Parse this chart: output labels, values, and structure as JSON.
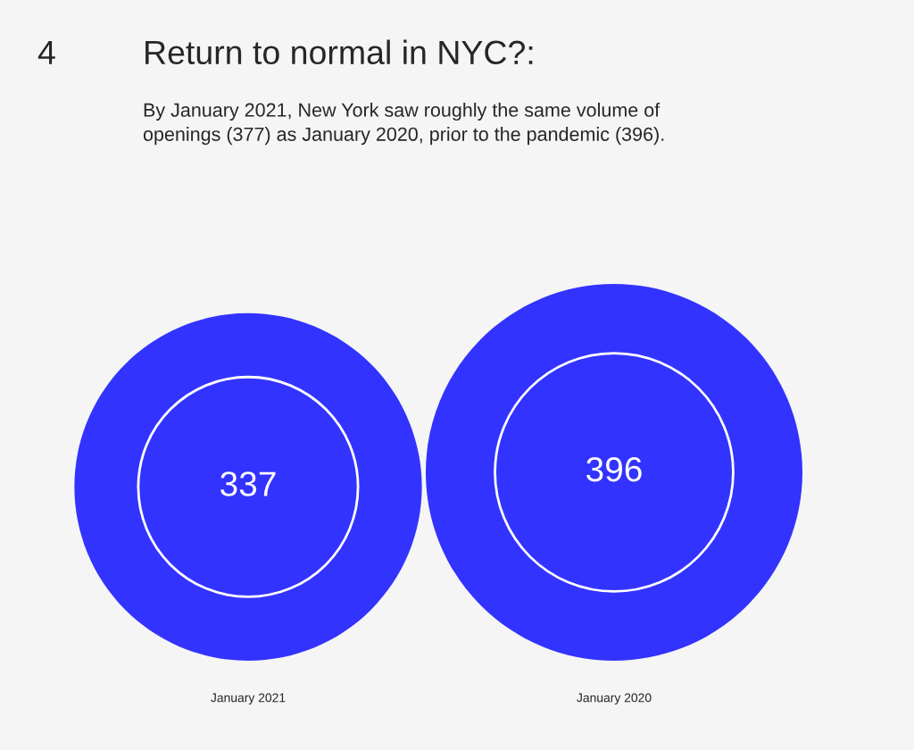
{
  "chart_data": {
    "type": "other",
    "title": "Return to normal in NYC?:",
    "subtitle": "By January 2021, New York saw roughly the same volume of openings (377) as January 2020, prior to the pandemic (396).",
    "annotations": [
      "4"
    ],
    "categories": [
      "January 2021",
      "January 2020"
    ],
    "values": [
      337,
      396
    ],
    "color": "#3333ff",
    "data_labels": true
  }
}
